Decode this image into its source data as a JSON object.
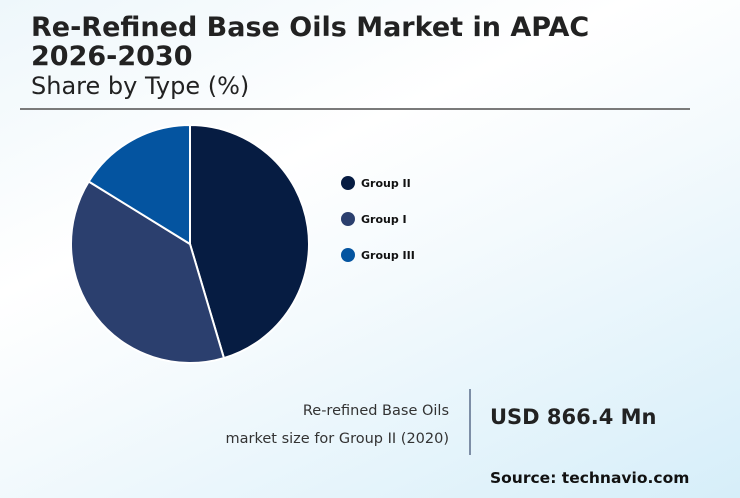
{
  "header": {
    "title_line1": "Re-Refined Base Oils Market in APAC",
    "title_line2": "2026-2030",
    "subtitle": "Share by Type (%)"
  },
  "legend": [
    {
      "label": "Group II",
      "color": "#061c42"
    },
    {
      "label": "Group I",
      "color": "#2b3f6e"
    },
    {
      "label": "Group III",
      "color": "#0454a0"
    }
  ],
  "stat": {
    "desc_line1": "Re-refined Base Oils",
    "desc_line2": "market size for Group II (2020)",
    "value": "USD 866.4 Mn"
  },
  "source": "Source: technavio.com",
  "chart_data": {
    "type": "pie",
    "title": "Re-Refined Base Oils Market in APAC 2026-2030",
    "subtitle": "Share by Type (%)",
    "categories": [
      "Group II",
      "Group I",
      "Group III"
    ],
    "values": [
      45.4,
      38.4,
      16.2
    ],
    "colors": [
      "#061c42",
      "#2b3f6e",
      "#0454a0"
    ],
    "start_angle": "12 o'clock, clockwise",
    "legend_position": "right",
    "data_labels": false
  }
}
